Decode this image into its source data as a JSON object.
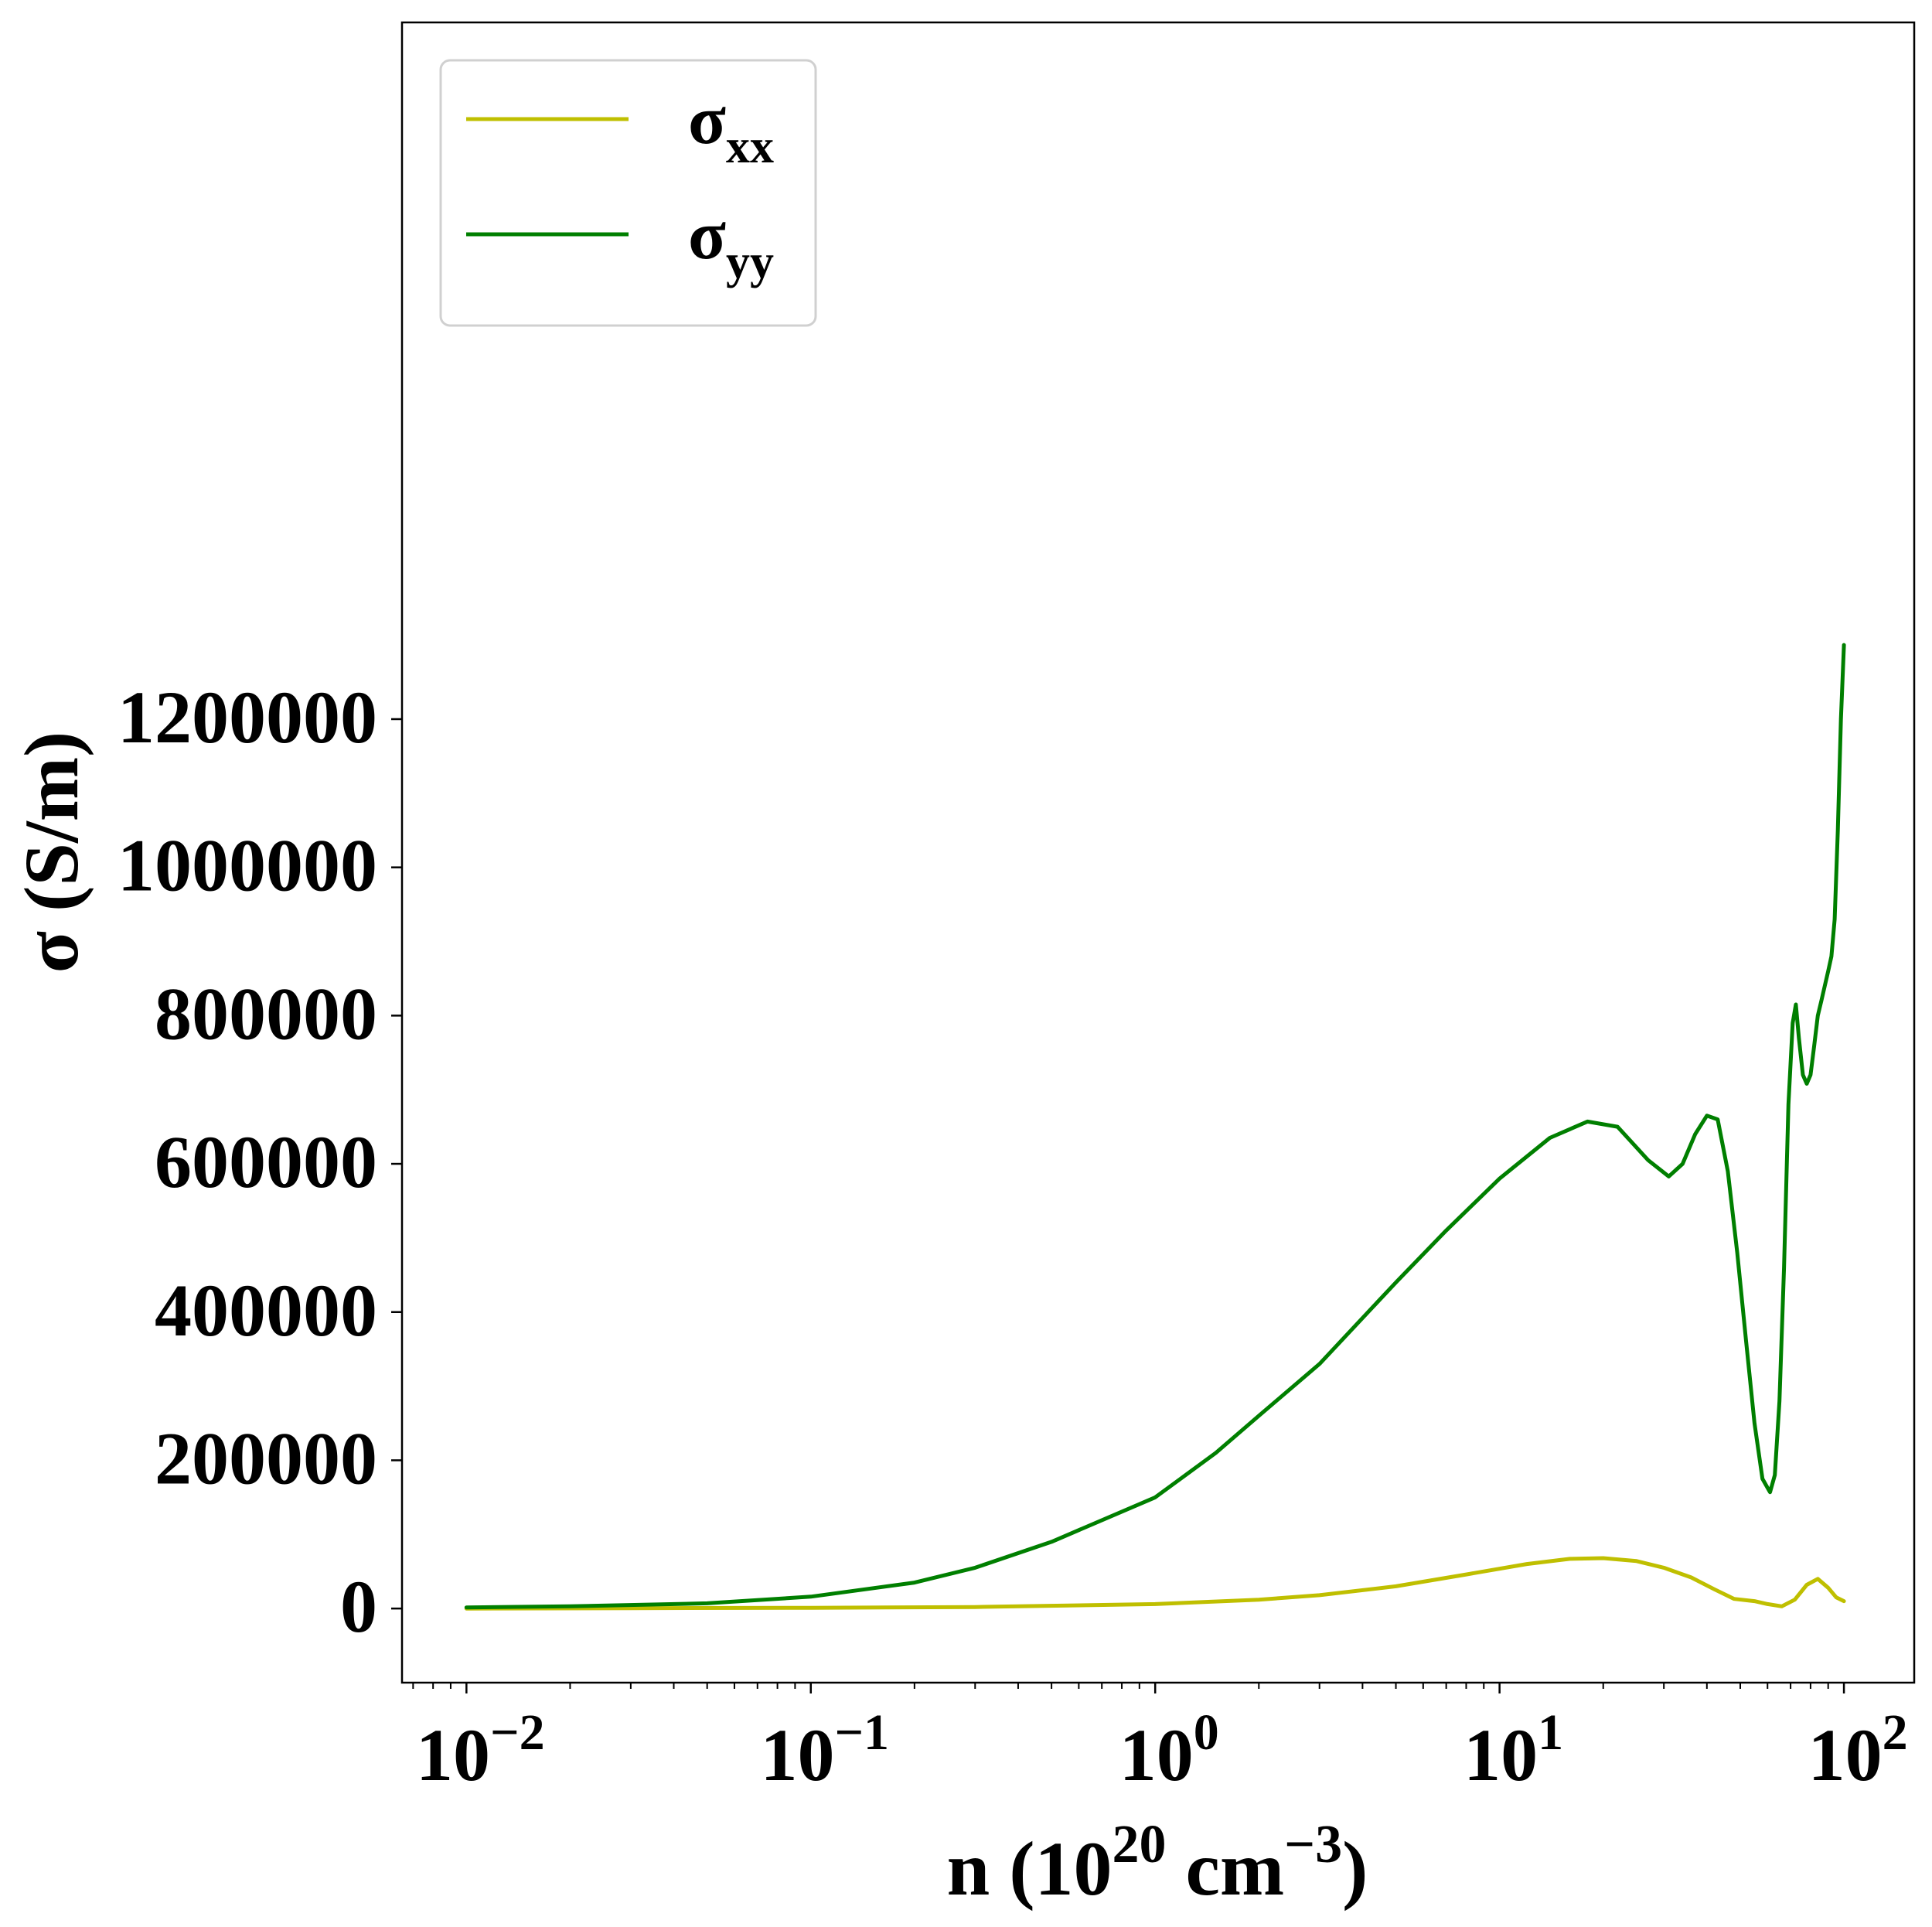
{
  "chart_data": {
    "type": "line",
    "x_scale": "log",
    "xlim": [
      0.0065,
      160
    ],
    "ylim": [
      -100000,
      2140000
    ],
    "xlabel": {
      "base": "n (10",
      "sup1": "20",
      "mid": " cm",
      "sup2": "−3",
      "end": ")"
    },
    "ylabel": "σ (S/m)",
    "x_ticks": [
      {
        "value": 0.01,
        "base": "10",
        "exp": "−2"
      },
      {
        "value": 0.1,
        "base": "10",
        "exp": "−1"
      },
      {
        "value": 1,
        "base": "10",
        "exp": "0"
      },
      {
        "value": 10,
        "base": "10",
        "exp": "1"
      },
      {
        "value": 100,
        "base": "10",
        "exp": "2"
      }
    ],
    "y_ticks": [
      {
        "value": 0,
        "label": "0"
      },
      {
        "value": 200000,
        "label": "200000"
      },
      {
        "value": 400000,
        "label": "400000"
      },
      {
        "value": 600000,
        "label": "600000"
      },
      {
        "value": 800000,
        "label": "800000"
      },
      {
        "value": 1000000,
        "label": "1000000"
      },
      {
        "value": 1200000,
        "label": "1200000"
      }
    ],
    "grid": false,
    "legend_position": "top-left",
    "series": [
      {
        "name": "σxx",
        "name_base": "σ",
        "name_sub": "xx",
        "color": "#bfbf00",
        "x": [
          0.01,
          0.03,
          0.1,
          0.3,
          1,
          2,
          3,
          5,
          8,
          12,
          16,
          20,
          25,
          30,
          36,
          42,
          48,
          55,
          60,
          66,
          72,
          78,
          84,
          90,
          95,
          100
        ],
        "y": [
          0,
          500,
          1000,
          2000,
          6000,
          12000,
          18000,
          30000,
          46000,
          60000,
          67000,
          68000,
          64000,
          55000,
          42000,
          26000,
          13000,
          10000,
          6000,
          3000,
          12000,
          32000,
          40000,
          28000,
          15000,
          10000
        ]
      },
      {
        "name": "σyy",
        "name_base": "σ",
        "name_sub": "yy",
        "color": "#007f00",
        "x": [
          0.01,
          0.02,
          0.05,
          0.1,
          0.2,
          0.3,
          0.5,
          1,
          1.5,
          2,
          3,
          5,
          7,
          10,
          14,
          18,
          22,
          27,
          31,
          34,
          37,
          40,
          43,
          46,
          49,
          52,
          55,
          58,
          61,
          63,
          65,
          67,
          69,
          71,
          72.5,
          74,
          76,
          78,
          80,
          82,
          84,
          86,
          88,
          90,
          92,
          94,
          96,
          98,
          100
        ],
        "y": [
          1500,
          3000,
          7000,
          16000,
          35000,
          55000,
          90000,
          150000,
          210000,
          260000,
          330000,
          440000,
          510000,
          580000,
          635000,
          657000,
          650000,
          605000,
          583000,
          600000,
          640000,
          665000,
          660000,
          590000,
          480000,
          360000,
          250000,
          175000,
          157000,
          180000,
          280000,
          460000,
          680000,
          790000,
          815000,
          770000,
          720000,
          708000,
          720000,
          760000,
          800000,
          820000,
          840000,
          860000,
          880000,
          930000,
          1050000,
          1200000,
          1300000
        ]
      }
    ]
  }
}
